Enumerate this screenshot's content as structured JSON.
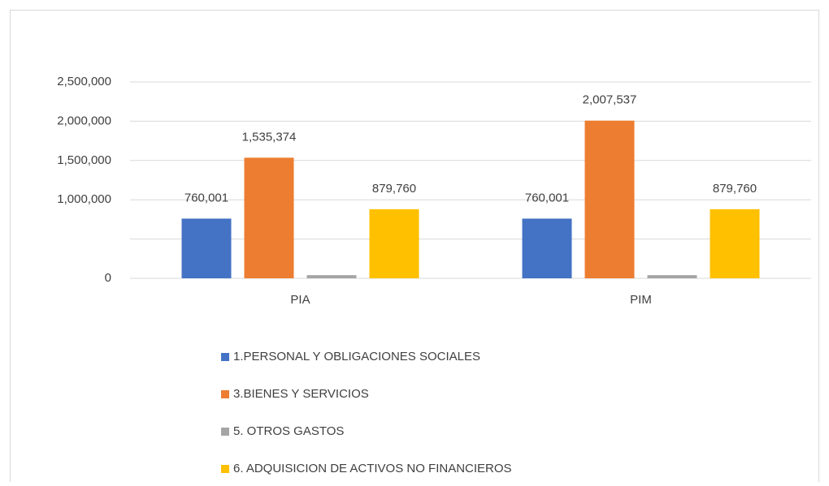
{
  "chart_data": {
    "type": "bar",
    "categories": [
      "PIA",
      "PIM"
    ],
    "series": [
      {
        "name": "1.PERSONAL Y OBLIGACIONES SOCIALES",
        "color": "#4472c4",
        "values": [
          760001,
          760001
        ],
        "value_labels": [
          "760,001",
          "760,001"
        ]
      },
      {
        "name": "3.BIENES Y SERVICIOS",
        "color": "#ed7d31",
        "values": [
          1535374,
          2007537
        ],
        "value_labels": [
          "1,535,374",
          "2,007,537"
        ]
      },
      {
        "name": "5. OTROS GASTOS",
        "color": "#a5a5a5",
        "values": [
          40000,
          40000
        ],
        "value_labels": [
          null,
          null
        ]
      },
      {
        "name": "6. ADQUISICION DE ACTIVOS NO FINANCIEROS",
        "color": "#ffc000",
        "values": [
          879760,
          879760
        ],
        "value_labels": [
          "879,760",
          "879,760"
        ]
      }
    ],
    "ylim": [
      0,
      2500000
    ],
    "yticks": [
      0,
      {
        "value": 500000,
        "label": null
      },
      {
        "value": 1000000,
        "label": "1,000,000"
      },
      {
        "value": 1500000,
        "label": "1,500,000"
      },
      {
        "value": 2000000,
        "label": "2,000,000"
      },
      {
        "value": 2500000,
        "label": "2,500,000"
      }
    ],
    "grid": true,
    "legend": "bottom"
  }
}
